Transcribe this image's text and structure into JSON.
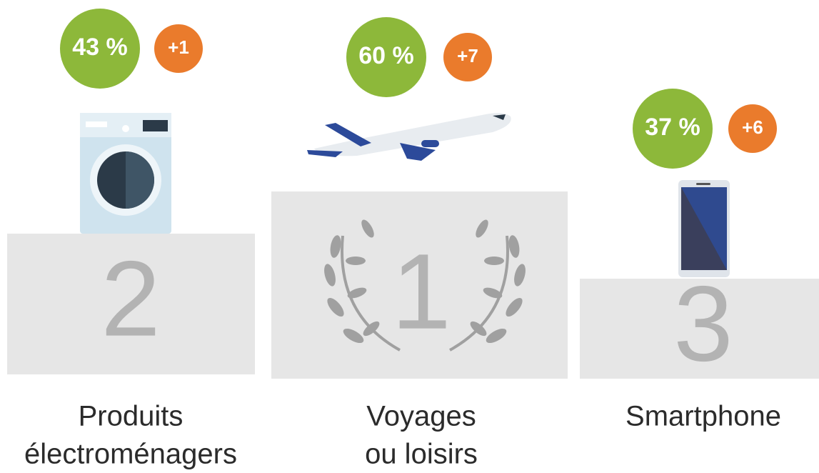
{
  "podium": [
    {
      "rank": "2",
      "percent": "43 %",
      "change": "+1",
      "label": [
        "Produits",
        "électroménagers"
      ]
    },
    {
      "rank": "1",
      "percent": "60 %",
      "change": "+7",
      "label": [
        "Voyages",
        "ou loisirs"
      ]
    },
    {
      "rank": "3",
      "percent": "37 %",
      "change": "+6",
      "label": [
        "Smartphone"
      ]
    }
  ]
}
